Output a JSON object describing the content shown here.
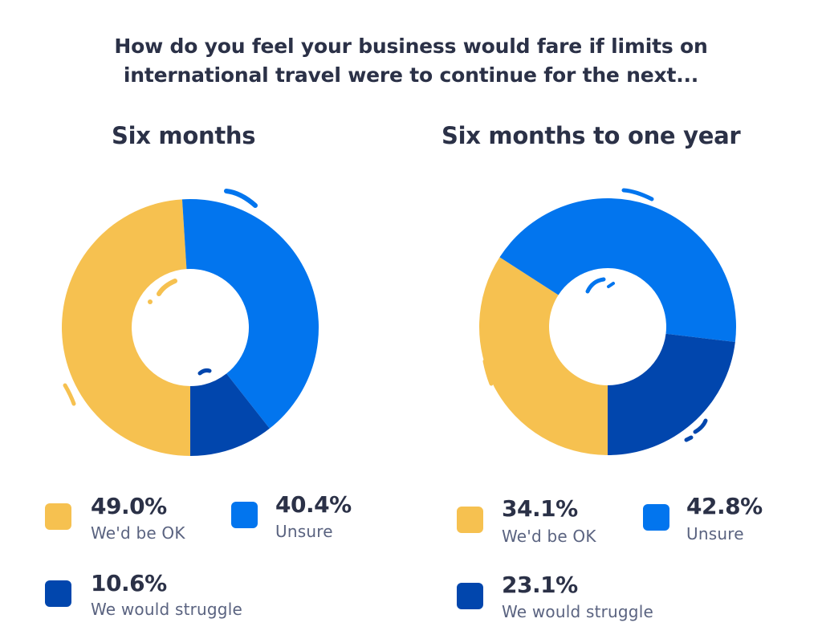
{
  "title": {
    "line1": "How do you feel your business would fare if limits on",
    "line2": "international travel were to continue for the next..."
  },
  "colors": {
    "ok": "#f6c150",
    "unsure": "#0275ee",
    "struggle": "#0146ad",
    "text_dark": "#2b3147",
    "text_muted": "#5a6380"
  },
  "panels": [
    {
      "subtitle": "Six months",
      "legend": [
        {
          "value": "49.0%",
          "label": "We'd be OK"
        },
        {
          "value": "40.4%",
          "label": "Unsure"
        },
        {
          "value": "10.6%",
          "label": "We would struggle"
        }
      ]
    },
    {
      "subtitle": "Six months to one year",
      "legend": [
        {
          "value": "34.1%",
          "label": "We'd be OK"
        },
        {
          "value": "42.8%",
          "label": "Unsure"
        },
        {
          "value": "23.1%",
          "label": "We would struggle"
        }
      ]
    }
  ],
  "chart_data": [
    {
      "type": "pie",
      "variant": "donut",
      "title": "Six months",
      "supertitle": "How do you feel your business would fare if limits on international travel were to continue for the next...",
      "categories": [
        "We'd be OK",
        "Unsure",
        "We would struggle"
      ],
      "values": [
        49.0,
        40.4,
        10.6
      ],
      "colors": [
        "#f6c150",
        "#0275ee",
        "#0146ad"
      ],
      "start_angle_deg": 180,
      "direction": "clockwise",
      "legend_position": "bottom"
    },
    {
      "type": "pie",
      "variant": "donut",
      "title": "Six months to one year",
      "supertitle": "How do you feel your business would fare if limits on international travel were to continue for the next...",
      "categories": [
        "We'd be OK",
        "Unsure",
        "We would struggle"
      ],
      "values": [
        34.1,
        42.8,
        23.1
      ],
      "colors": [
        "#f6c150",
        "#0275ee",
        "#0146ad"
      ],
      "start_angle_deg": 180,
      "direction": "clockwise",
      "legend_position": "bottom"
    }
  ]
}
